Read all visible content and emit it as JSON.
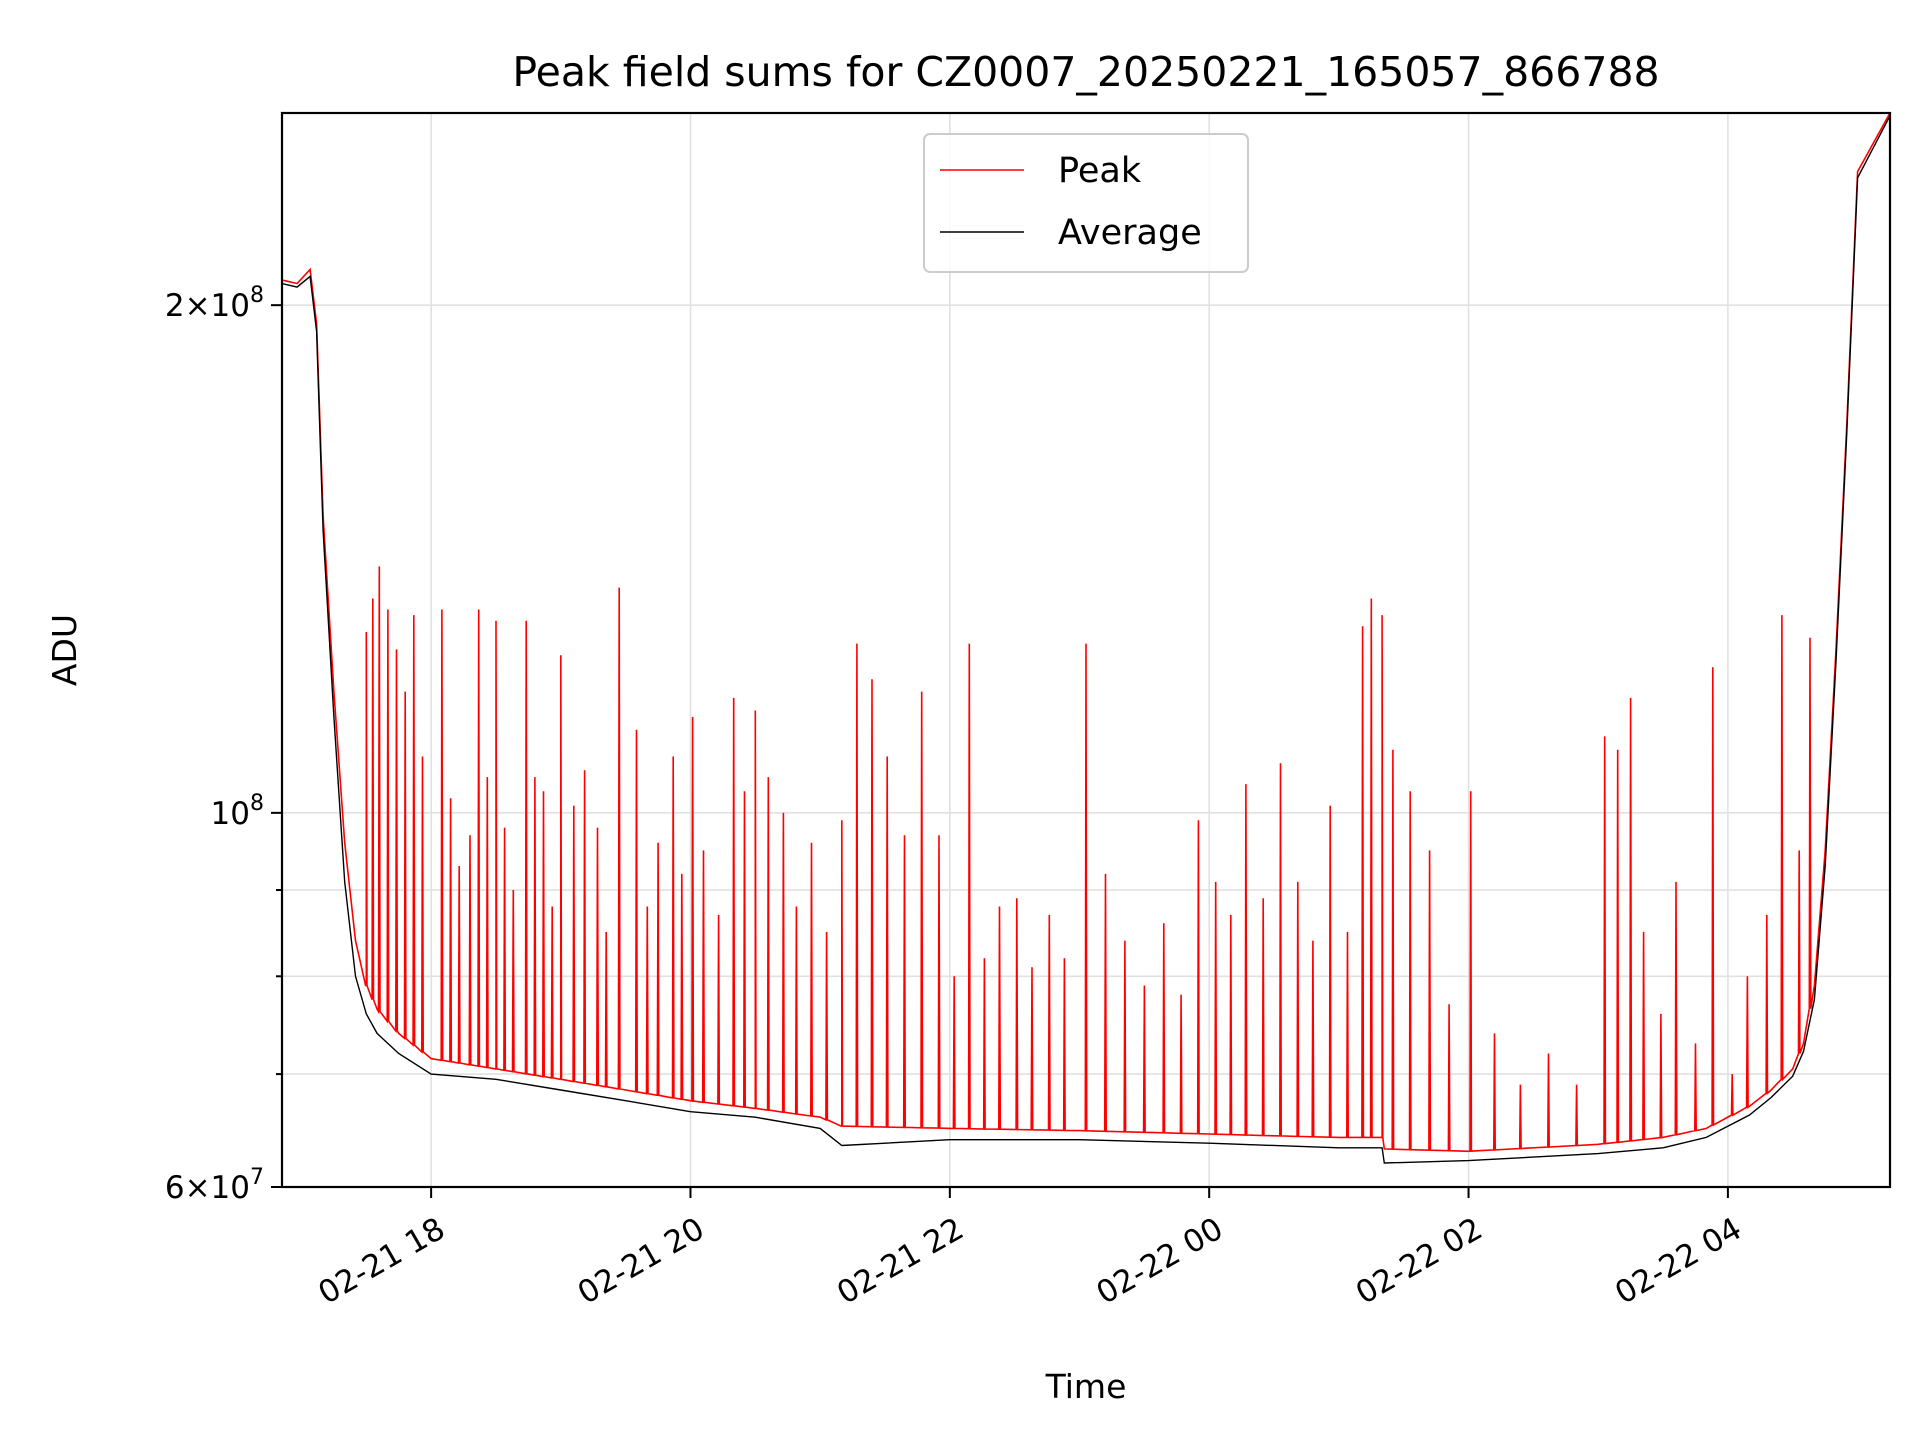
{
  "chart_data": {
    "type": "line",
    "title": "Peak field sums for CZ0007_20250221_165057_866788",
    "xlabel": "Time",
    "ylabel": "ADU",
    "y_scale": "log",
    "ylim": [
      60000000,
      260000000
    ],
    "xlim": [
      "2025-02-21 16:51",
      "2025-02-22 05:15"
    ],
    "grid": true,
    "legend_position": "top-center",
    "x_ticks": [
      {
        "time": "2025-02-21 18:00",
        "label": "02-21 18"
      },
      {
        "time": "2025-02-21 20:00",
        "label": "02-21 20"
      },
      {
        "time": "2025-02-21 22:00",
        "label": "02-21 22"
      },
      {
        "time": "2025-02-22 00:00",
        "label": "02-22 00"
      },
      {
        "time": "2025-02-22 02:00",
        "label": "02-22 02"
      },
      {
        "time": "2025-02-22 04:00",
        "label": "02-22 04"
      }
    ],
    "y_ticks": [
      {
        "value": 60000000,
        "mantissa": "6",
        "exponent": "7"
      },
      {
        "value": 100000000,
        "mantissa": "",
        "exponent": "8"
      },
      {
        "value": 200000000,
        "mantissa": "2",
        "exponent": "8"
      }
    ],
    "y_minor_ticks": [
      70000000,
      80000000,
      90000000
    ],
    "series": [
      {
        "name": "Peak",
        "color": "#ff0000",
        "baseline_x": [
          "2025-02-21 16:51",
          "2025-02-21 16:58",
          "2025-02-21 17:04",
          "2025-02-21 17:07",
          "2025-02-21 17:10",
          "2025-02-21 17:15",
          "2025-02-21 17:20",
          "2025-02-21 17:25",
          "2025-02-21 17:30",
          "2025-02-21 17:35",
          "2025-02-21 17:45",
          "2025-02-21 18:00",
          "2025-02-21 18:30",
          "2025-02-21 19:00",
          "2025-02-21 19:30",
          "2025-02-21 20:00",
          "2025-02-21 20:30",
          "2025-02-21 21:00",
          "2025-02-21 21:10",
          "2025-02-21 22:00",
          "2025-02-21 23:00",
          "2025-02-22 00:00",
          "2025-02-22 01:00",
          "2025-02-22 01:20",
          "2025-02-22 01:21",
          "2025-02-22 02:00",
          "2025-02-22 03:00",
          "2025-02-22 03:30",
          "2025-02-22 03:50",
          "2025-02-22 04:10",
          "2025-02-22 04:20",
          "2025-02-22 04:30",
          "2025-02-22 04:35",
          "2025-02-22 04:40",
          "2025-02-22 04:45",
          "2025-02-22 04:50",
          "2025-02-22 04:55",
          "2025-02-22 05:00",
          "2025-02-22 05:15"
        ],
        "baseline_y": [
          207000000,
          206000000,
          210000000,
          195000000,
          150000000,
          118000000,
          96000000,
          84000000,
          79000000,
          76500000,
          74000000,
          71500000,
          70500000,
          69500000,
          68500000,
          67500000,
          66800000,
          66000000,
          65200000,
          65000000,
          64800000,
          64500000,
          64200000,
          64200000,
          63200000,
          63000000,
          63600000,
          64200000,
          65000000,
          67000000,
          68500000,
          70500000,
          73000000,
          79000000,
          95000000,
          125000000,
          170000000,
          240000000,
          260000000
        ],
        "spikes": [
          [
            "2025-02-21 17:30",
            128000000
          ],
          [
            "2025-02-21 17:33",
            134000000
          ],
          [
            "2025-02-21 17:36",
            140000000
          ],
          [
            "2025-02-21 17:40",
            132000000
          ],
          [
            "2025-02-21 17:44",
            125000000
          ],
          [
            "2025-02-21 17:48",
            118000000
          ],
          [
            "2025-02-21 17:52",
            131000000
          ],
          [
            "2025-02-21 17:56",
            108000000
          ],
          [
            "2025-02-21 18:05",
            132000000
          ],
          [
            "2025-02-21 18:09",
            102000000
          ],
          [
            "2025-02-21 18:13",
            93000000
          ],
          [
            "2025-02-21 18:18",
            97000000
          ],
          [
            "2025-02-21 18:22",
            132000000
          ],
          [
            "2025-02-21 18:26",
            105000000
          ],
          [
            "2025-02-21 18:30",
            130000000
          ],
          [
            "2025-02-21 18:34",
            98000000
          ],
          [
            "2025-02-21 18:38",
            90000000
          ],
          [
            "2025-02-21 18:44",
            130000000
          ],
          [
            "2025-02-21 18:48",
            105000000
          ],
          [
            "2025-02-21 18:52",
            103000000
          ],
          [
            "2025-02-21 18:56",
            88000000
          ],
          [
            "2025-02-21 19:00",
            124000000
          ],
          [
            "2025-02-21 19:06",
            101000000
          ],
          [
            "2025-02-21 19:11",
            106000000
          ],
          [
            "2025-02-21 19:17",
            98000000
          ],
          [
            "2025-02-21 19:21",
            85000000
          ],
          [
            "2025-02-21 19:27",
            136000000
          ],
          [
            "2025-02-21 19:35",
            112000000
          ],
          [
            "2025-02-21 19:40",
            88000000
          ],
          [
            "2025-02-21 19:45",
            96000000
          ],
          [
            "2025-02-21 19:52",
            108000000
          ],
          [
            "2025-02-21 19:56",
            92000000
          ],
          [
            "2025-02-21 20:01",
            114000000
          ],
          [
            "2025-02-21 20:06",
            95000000
          ],
          [
            "2025-02-21 20:13",
            87000000
          ],
          [
            "2025-02-21 20:20",
            117000000
          ],
          [
            "2025-02-21 20:25",
            103000000
          ],
          [
            "2025-02-21 20:30",
            115000000
          ],
          [
            "2025-02-21 20:36",
            105000000
          ],
          [
            "2025-02-21 20:43",
            100000000
          ],
          [
            "2025-02-21 20:49",
            88000000
          ],
          [
            "2025-02-21 20:56",
            96000000
          ],
          [
            "2025-02-21 21:03",
            85000000
          ],
          [
            "2025-02-21 21:10",
            99000000
          ],
          [
            "2025-02-21 21:17",
            126000000
          ],
          [
            "2025-02-21 21:24",
            120000000
          ],
          [
            "2025-02-21 21:31",
            108000000
          ],
          [
            "2025-02-21 21:39",
            97000000
          ],
          [
            "2025-02-21 21:47",
            118000000
          ],
          [
            "2025-02-21 21:55",
            97000000
          ],
          [
            "2025-02-21 22:02",
            80000000
          ],
          [
            "2025-02-21 22:09",
            126000000
          ],
          [
            "2025-02-21 22:16",
            82000000
          ],
          [
            "2025-02-21 22:23",
            88000000
          ],
          [
            "2025-02-21 22:31",
            89000000
          ],
          [
            "2025-02-21 22:38",
            81000000
          ],
          [
            "2025-02-21 22:46",
            87000000
          ],
          [
            "2025-02-21 22:53",
            82000000
          ],
          [
            "2025-02-21 23:03",
            126000000
          ],
          [
            "2025-02-21 23:12",
            92000000
          ],
          [
            "2025-02-21 23:21",
            84000000
          ],
          [
            "2025-02-21 23:30",
            79000000
          ],
          [
            "2025-02-21 23:39",
            86000000
          ],
          [
            "2025-02-21 23:47",
            78000000
          ],
          [
            "2025-02-21 23:55",
            99000000
          ],
          [
            "2025-02-22 00:03",
            91000000
          ],
          [
            "2025-02-22 00:10",
            87000000
          ],
          [
            "2025-02-22 00:17",
            104000000
          ],
          [
            "2025-02-22 00:25",
            89000000
          ],
          [
            "2025-02-22 00:33",
            107000000
          ],
          [
            "2025-02-22 00:41",
            91000000
          ],
          [
            "2025-02-22 00:48",
            84000000
          ],
          [
            "2025-02-22 00:56",
            101000000
          ],
          [
            "2025-02-22 01:04",
            85000000
          ],
          [
            "2025-02-22 01:11",
            129000000
          ],
          [
            "2025-02-22 01:15",
            134000000
          ],
          [
            "2025-02-22 01:20",
            131000000
          ],
          [
            "2025-02-22 01:25",
            109000000
          ],
          [
            "2025-02-22 01:33",
            103000000
          ],
          [
            "2025-02-22 01:42",
            95000000
          ],
          [
            "2025-02-22 01:51",
            77000000
          ],
          [
            "2025-02-22 02:01",
            103000000
          ],
          [
            "2025-02-22 02:12",
            74000000
          ],
          [
            "2025-02-22 02:24",
            69000000
          ],
          [
            "2025-02-22 02:37",
            72000000
          ],
          [
            "2025-02-22 02:50",
            69000000
          ],
          [
            "2025-02-22 03:03",
            111000000
          ],
          [
            "2025-02-22 03:09",
            109000000
          ],
          [
            "2025-02-22 03:15",
            117000000
          ],
          [
            "2025-02-22 03:21",
            85000000
          ],
          [
            "2025-02-22 03:29",
            76000000
          ],
          [
            "2025-02-22 03:36",
            91000000
          ],
          [
            "2025-02-22 03:45",
            73000000
          ],
          [
            "2025-02-22 03:53",
            122000000
          ],
          [
            "2025-02-22 04:02",
            70000000
          ],
          [
            "2025-02-22 04:09",
            80000000
          ],
          [
            "2025-02-22 04:18",
            87000000
          ],
          [
            "2025-02-22 04:25",
            131000000
          ],
          [
            "2025-02-22 04:33",
            95000000
          ],
          [
            "2025-02-22 04:38",
            127000000
          ]
        ]
      },
      {
        "name": "Average",
        "color": "#000000",
        "baseline_x": [
          "2025-02-21 16:51",
          "2025-02-21 16:58",
          "2025-02-21 17:04",
          "2025-02-21 17:07",
          "2025-02-21 17:10",
          "2025-02-21 17:15",
          "2025-02-21 17:20",
          "2025-02-21 17:25",
          "2025-02-21 17:30",
          "2025-02-21 17:35",
          "2025-02-21 17:45",
          "2025-02-21 18:00",
          "2025-02-21 18:30",
          "2025-02-21 19:00",
          "2025-02-21 19:30",
          "2025-02-21 20:00",
          "2025-02-21 20:30",
          "2025-02-21 21:00",
          "2025-02-21 21:10",
          "2025-02-21 22:00",
          "2025-02-21 23:00",
          "2025-02-22 00:00",
          "2025-02-22 01:00",
          "2025-02-22 01:20",
          "2025-02-22 01:21",
          "2025-02-22 02:00",
          "2025-02-22 03:00",
          "2025-02-22 03:30",
          "2025-02-22 03:50",
          "2025-02-22 04:10",
          "2025-02-22 04:20",
          "2025-02-22 04:30",
          "2025-02-22 04:35",
          "2025-02-22 04:40",
          "2025-02-22 04:45",
          "2025-02-22 04:50",
          "2025-02-22 04:55",
          "2025-02-22 05:00",
          "2025-02-22 05:15"
        ],
        "baseline_y": [
          206000000,
          205000000,
          208000000,
          193000000,
          147000000,
          114000000,
          91000000,
          80000000,
          76000000,
          74000000,
          72000000,
          70000000,
          69500000,
          68500000,
          67500000,
          66500000,
          66000000,
          65000000,
          63500000,
          64000000,
          64000000,
          63700000,
          63300000,
          63300000,
          62000000,
          62200000,
          62800000,
          63300000,
          64200000,
          66200000,
          67800000,
          69800000,
          72200000,
          77500000,
          93000000,
          123000000,
          168000000,
          238000000,
          259000000
        ]
      }
    ]
  }
}
